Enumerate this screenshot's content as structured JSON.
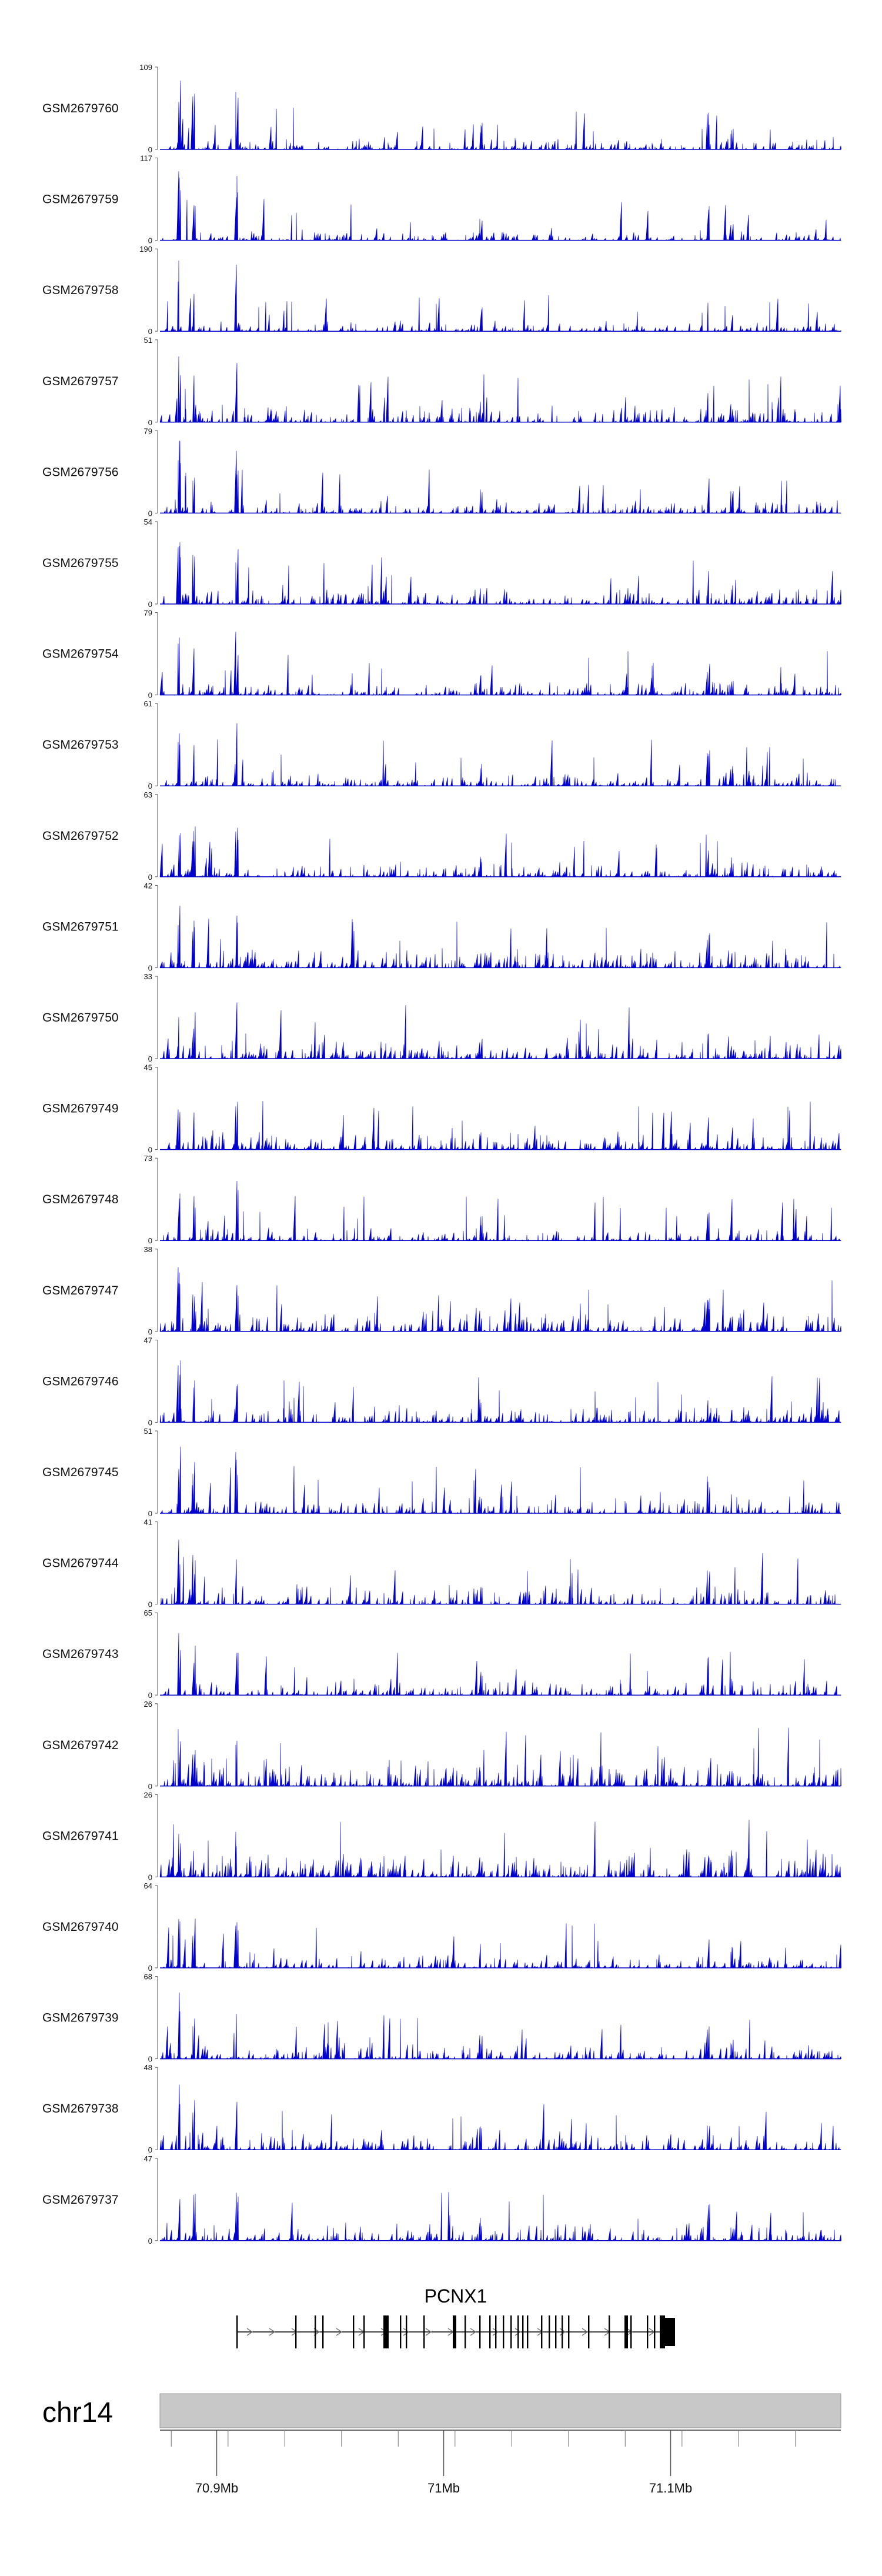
{
  "chart_data": {
    "type": "area",
    "chromosome": "chr14",
    "gene": {
      "name": "PCNX1"
    },
    "x_axis": {
      "ticks": [
        {
          "value": 70.9,
          "label": "70.9Mb"
        },
        {
          "value": 71.0,
          "label": "71Mb"
        },
        {
          "value": 71.1,
          "label": "71.1Mb"
        }
      ],
      "range_mb": [
        70.875,
        71.175
      ]
    },
    "colors": {
      "signal": "#0000cc",
      "gene": "#000000",
      "ideogram": "#c8c8c8",
      "axis": "#555555"
    },
    "tracks": [
      {
        "name": "GSM2679760",
        "ymax": 109,
        "ymin": 0
      },
      {
        "name": "GSM2679759",
        "ymax": 117,
        "ymin": 0
      },
      {
        "name": "GSM2679758",
        "ymax": 190,
        "ymin": 0
      },
      {
        "name": "GSM2679757",
        "ymax": 51,
        "ymin": 0
      },
      {
        "name": "GSM2679756",
        "ymax": 79,
        "ymin": 0
      },
      {
        "name": "GSM2679755",
        "ymax": 54,
        "ymin": 0
      },
      {
        "name": "GSM2679754",
        "ymax": 79,
        "ymin": 0
      },
      {
        "name": "GSM2679753",
        "ymax": 61,
        "ymin": 0
      },
      {
        "name": "GSM2679752",
        "ymax": 63,
        "ymin": 0
      },
      {
        "name": "GSM2679751",
        "ymax": 42,
        "ymin": 0
      },
      {
        "name": "GSM2679750",
        "ymax": 33,
        "ymin": 0
      },
      {
        "name": "GSM2679749",
        "ymax": 45,
        "ymin": 0
      },
      {
        "name": "GSM2679748",
        "ymax": 73,
        "ymin": 0
      },
      {
        "name": "GSM2679747",
        "ymax": 38,
        "ymin": 0
      },
      {
        "name": "GSM2679746",
        "ymax": 47,
        "ymin": 0
      },
      {
        "name": "GSM2679745",
        "ymax": 51,
        "ymin": 0
      },
      {
        "name": "GSM2679744",
        "ymax": 41,
        "ymin": 0
      },
      {
        "name": "GSM2679743",
        "ymax": 65,
        "ymin": 0
      },
      {
        "name": "GSM2679742",
        "ymax": 26,
        "ymin": 0
      },
      {
        "name": "GSM2679741",
        "ymax": 26,
        "ymin": 0
      },
      {
        "name": "GSM2679740",
        "ymax": 64,
        "ymin": 0
      },
      {
        "name": "GSM2679739",
        "ymax": 68,
        "ymin": 0
      },
      {
        "name": "GSM2679738",
        "ymax": 48,
        "ymin": 0
      },
      {
        "name": "GSM2679737",
        "ymax": 47,
        "ymin": 0
      }
    ]
  }
}
